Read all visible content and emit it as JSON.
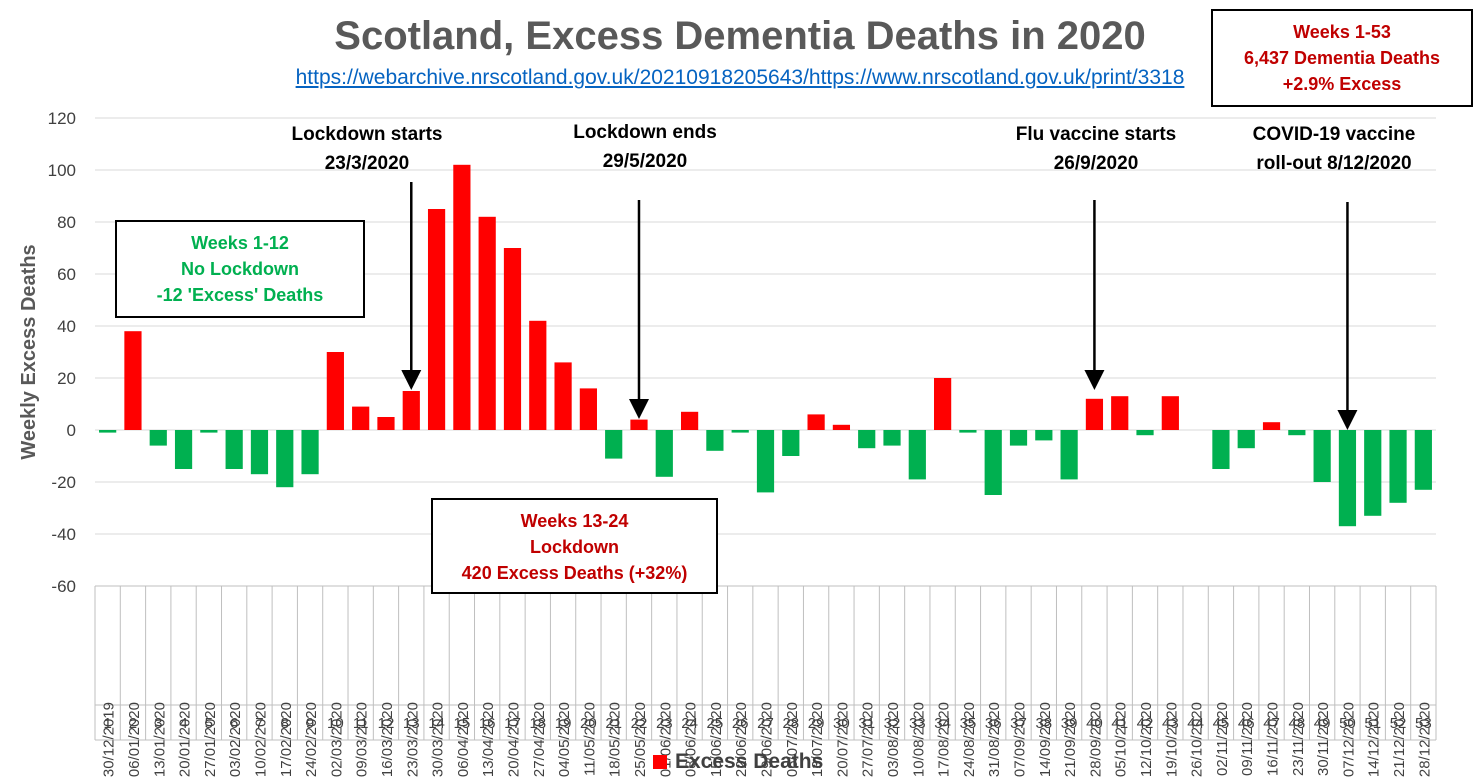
{
  "title": "Scotland, Excess Dementia Deaths in 2020",
  "source_url": "https://webarchive.nrscotland.gov.uk/20210918205643/https://www.nrscotland.gov.uk/print/3318",
  "colors": {
    "excess": "#ff0000",
    "deficit": "#00b050",
    "title": "#595959",
    "link": "#0563c1",
    "annotation_red": "#c00000"
  },
  "summary_box": {
    "line1": "Weeks 1-53",
    "line2": "6,437 Dementia Deaths",
    "line3": "+2.9% Excess"
  },
  "no_lockdown_box": {
    "line1": "Weeks 1-12",
    "line2": "No Lockdown",
    "line3": "-12 'Excess' Deaths"
  },
  "lockdown_box": {
    "line1": "Weeks 13-24",
    "line2": "Lockdown",
    "line3": "420 Excess Deaths (+32%)"
  },
  "events": [
    {
      "line1": "Lockdown starts",
      "line2": "23/3/2020",
      "week": 13
    },
    {
      "line1": "Lockdown ends",
      "line2": "29/5/2020",
      "week": 22
    },
    {
      "line1": "Flu vaccine starts",
      "line2": "26/9/2020",
      "week": 40
    },
    {
      "line1": "COVID-19 vaccine",
      "line2": "roll-out 8/12/2020",
      "week": 50
    }
  ],
  "legend": {
    "label": "Excess Deaths"
  },
  "chart_data": {
    "type": "bar",
    "title": "Scotland, Excess Dementia Deaths in 2020",
    "ylabel": "Weekly Excess Deaths",
    "xlabel": "",
    "ylim": [
      -60,
      120
    ],
    "yticks": [
      -60,
      -40,
      -20,
      0,
      20,
      40,
      60,
      80,
      100,
      120
    ],
    "grid": true,
    "legend_position": "bottom",
    "categories": [
      "30/12/2019",
      "06/01/2020",
      "13/01/2020",
      "20/01/2020",
      "27/01/2020",
      "03/02/2020",
      "10/02/2020",
      "17/02/2020",
      "24/02/2020",
      "02/03/2020",
      "09/03/2020",
      "16/03/2020",
      "23/03/2020",
      "30/03/2020",
      "06/04/2020",
      "13/04/2020",
      "20/04/2020",
      "27/04/2020",
      "04/05/2020",
      "11/05/2020",
      "18/05/2020",
      "25/05/2020",
      "01/06/2020",
      "08/06/2020",
      "15/06/2020",
      "22/06/2020",
      "29/06/2020",
      "06/07/2020",
      "13/07/2020",
      "20/07/2020",
      "27/07/2020",
      "03/08/2020",
      "10/08/2020",
      "17/08/2020",
      "24/08/2020",
      "31/08/2020",
      "07/09/2020",
      "14/09/2020",
      "21/09/2020",
      "28/09/2020",
      "05/10/2020",
      "12/10/2020",
      "19/10/2020",
      "26/10/2020",
      "02/11/2020",
      "09/11/2020",
      "16/11/2020",
      "23/11/2020",
      "30/11/2020",
      "07/12/2020",
      "14/12/2020",
      "21/12/2020",
      "28/12/2020"
    ],
    "weeks": [
      "1",
      "2",
      "3",
      "4",
      "5",
      "6",
      "7",
      "8",
      "9",
      "10",
      "11",
      "12",
      "13",
      "14",
      "15",
      "16",
      "17",
      "18",
      "19",
      "20",
      "21",
      "22",
      "23",
      "24",
      "25",
      "26",
      "27",
      "28",
      "29",
      "30",
      "31",
      "32",
      "33",
      "34",
      "35",
      "36",
      "37",
      "38",
      "39",
      "40",
      "41",
      "42",
      "43",
      "44",
      "45",
      "46",
      "47",
      "48",
      "49",
      "50",
      "51",
      "52",
      "53"
    ],
    "series": [
      {
        "name": "Excess Deaths",
        "values": [
          -1,
          38,
          -6,
          -15,
          -1,
          -15,
          -17,
          -22,
          -17,
          30,
          9,
          5,
          15,
          85,
          102,
          82,
          70,
          42,
          26,
          16,
          -11,
          4,
          -18,
          7,
          -8,
          -1,
          -24,
          -10,
          6,
          2,
          -7,
          -6,
          -19,
          20,
          -1,
          -25,
          -6,
          -4,
          -19,
          12,
          13,
          -2,
          13,
          0,
          -15,
          -7,
          3,
          -2,
          -20,
          -37,
          -33,
          -28,
          -23
        ]
      }
    ]
  }
}
